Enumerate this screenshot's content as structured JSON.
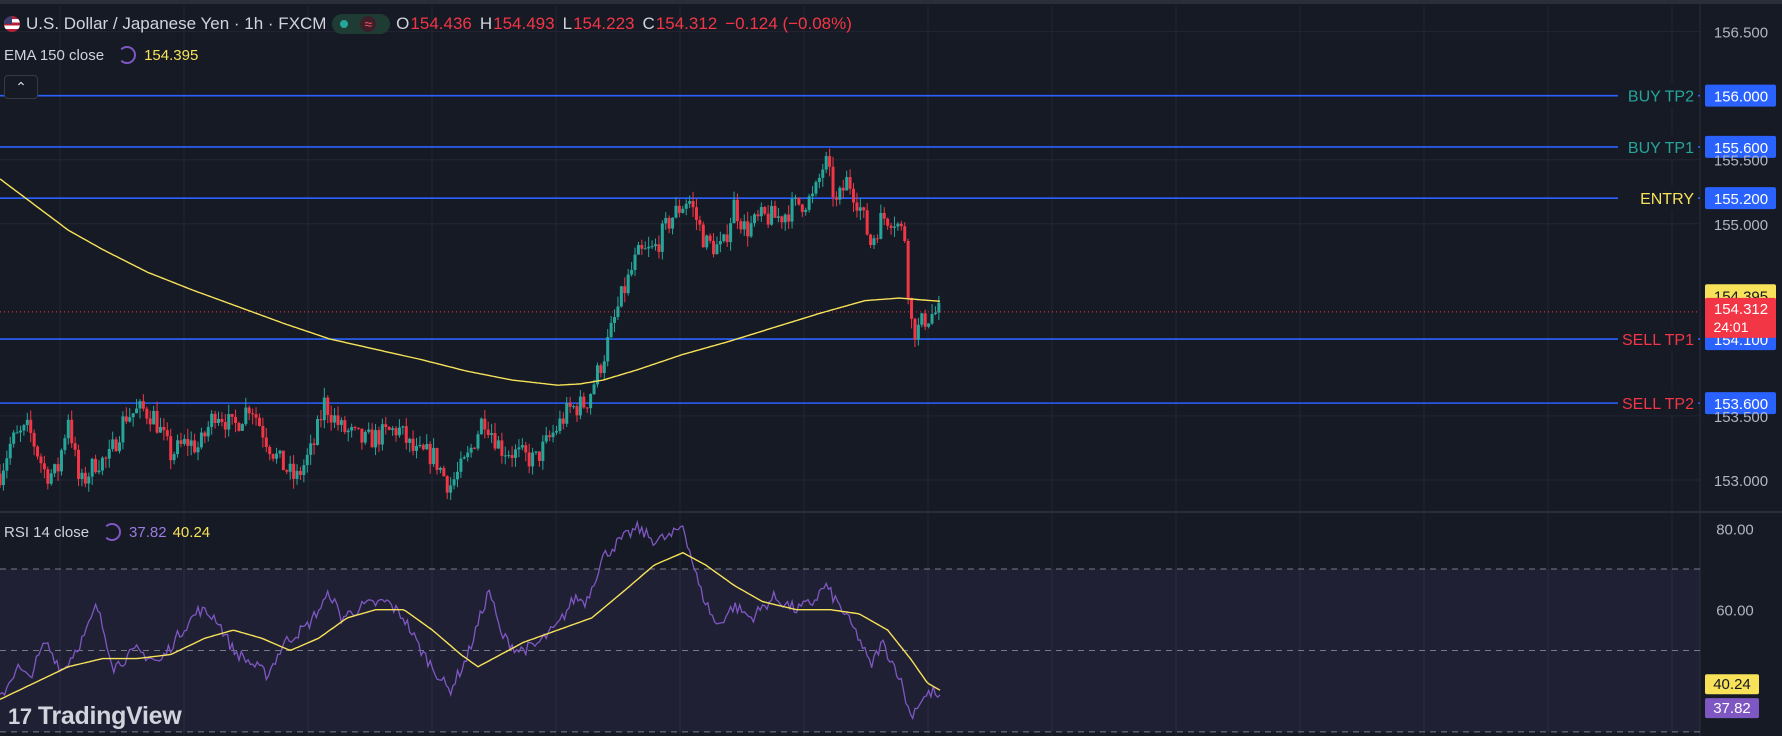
{
  "header": {
    "symbol_title": "U.S. Dollar / Japanese Yen · 1h · FXCM",
    "ohlc": [
      {
        "key": "O",
        "value": "154.436"
      },
      {
        "key": "H",
        "value": "154.493"
      },
      {
        "key": "L",
        "value": "154.223"
      },
      {
        "key": "C",
        "value": "154.312"
      }
    ],
    "change": "−0.124 (−0.08%)",
    "collapse_glyph": "⌃"
  },
  "ema_legend": {
    "label": "EMA 150 close",
    "value": "154.395"
  },
  "rsi_legend": {
    "label": "RSI 14 close",
    "rsi": "37.82",
    "ma": "40.24"
  },
  "brand": {
    "name": "TradingView",
    "logo_glyph": "17"
  },
  "colors": {
    "background": "#161a25",
    "grid": "#232632",
    "up": "#26a69a",
    "down": "#f23645",
    "level_line": "#2962ff",
    "ema": "#f7e259",
    "rsi": "#7e57c2",
    "rsi_ma": "#f7e259",
    "text": "#d1d4dc"
  },
  "icons": [
    "us-flag-icon",
    "market-open-dot-icon",
    "wave-icon",
    "indicator-cycle-icon",
    "collapse-chevron-icon",
    "tradingview-logo-icon"
  ],
  "chart_data": [
    {
      "type": "candlestick",
      "title": "U.S. Dollar / Japanese Yen · 1h · FXCM",
      "ylim": [
        152.75,
        156.7
      ],
      "yticks": [
        "156.500",
        "155.500",
        "155.000",
        "153.500",
        "153.000"
      ],
      "yticks_values": [
        156.5,
        155.5,
        155.0,
        153.5,
        153.0
      ],
      "last_price": {
        "value": 154.312,
        "label": "154.312",
        "countdown": "24:01"
      },
      "ema": {
        "name": "EMA 150 close",
        "last": 154.395,
        "label": "154.395"
      },
      "levels": [
        {
          "name": "BUY TP2",
          "value": 156.0,
          "label": "156.000",
          "color": "#26a69a"
        },
        {
          "name": "BUY TP1",
          "value": 155.6,
          "label": "155.600",
          "color": "#26a69a"
        },
        {
          "name": "ENTRY",
          "value": 155.2,
          "label": "155.200",
          "color": "#f7e259"
        },
        {
          "name": "SELL TP1",
          "value": 154.1,
          "label": "154.100",
          "color": "#f23645"
        },
        {
          "name": "SELL TP2",
          "value": 153.6,
          "label": "153.600",
          "color": "#f23645"
        }
      ],
      "close_anchors": [
        [
          0,
          153.05
        ],
        [
          10,
          153.3
        ],
        [
          25,
          153.4
        ],
        [
          40,
          153.05
        ],
        [
          50,
          153.05
        ],
        [
          60,
          153.5
        ],
        [
          70,
          152.95
        ],
        [
          85,
          153.15
        ],
        [
          95,
          153.15
        ],
        [
          110,
          153.5
        ],
        [
          125,
          153.55
        ],
        [
          135,
          153.5
        ],
        [
          150,
          153.2
        ],
        [
          165,
          153.3
        ],
        [
          175,
          153.25
        ],
        [
          190,
          153.55
        ],
        [
          205,
          153.4
        ],
        [
          220,
          153.6
        ],
        [
          235,
          153.3
        ],
        [
          245,
          153.15
        ],
        [
          260,
          153.0
        ],
        [
          275,
          153.25
        ],
        [
          285,
          153.6
        ],
        [
          300,
          153.4
        ],
        [
          320,
          153.3
        ],
        [
          335,
          153.35
        ],
        [
          350,
          153.4
        ],
        [
          365,
          153.2
        ],
        [
          380,
          153.2
        ],
        [
          395,
          152.95
        ],
        [
          410,
          153.15
        ],
        [
          425,
          153.5
        ],
        [
          440,
          153.25
        ],
        [
          455,
          153.2
        ],
        [
          470,
          153.15
        ],
        [
          485,
          153.35
        ],
        [
          500,
          153.55
        ],
        [
          515,
          153.6
        ],
        [
          530,
          153.95
        ],
        [
          545,
          154.4
        ],
        [
          560,
          154.75
        ],
        [
          575,
          154.8
        ],
        [
          590,
          155.05
        ],
        [
          605,
          155.2
        ],
        [
          620,
          154.85
        ],
        [
          635,
          154.8
        ],
        [
          645,
          155.15
        ],
        [
          655,
          154.95
        ],
        [
          670,
          155.05
        ],
        [
          685,
          155.05
        ],
        [
          700,
          155.15
        ],
        [
          715,
          155.2
        ],
        [
          725,
          155.5
        ],
        [
          735,
          155.15
        ],
        [
          745,
          155.35
        ],
        [
          755,
          155.15
        ],
        [
          765,
          154.85
        ],
        [
          775,
          155.05
        ],
        [
          785,
          155.05
        ],
        [
          795,
          154.9
        ],
        [
          800,
          154.25
        ],
        [
          805,
          154.15
        ],
        [
          812,
          154.25
        ],
        [
          820,
          154.3
        ],
        [
          826,
          154.31
        ]
      ],
      "ema_anchors": [
        [
          0,
          155.35
        ],
        [
          30,
          155.15
        ],
        [
          60,
          154.95
        ],
        [
          90,
          154.8
        ],
        [
          130,
          154.62
        ],
        [
          170,
          154.48
        ],
        [
          210,
          154.35
        ],
        [
          250,
          154.22
        ],
        [
          290,
          154.1
        ],
        [
          330,
          154.02
        ],
        [
          370,
          153.94
        ],
        [
          410,
          153.85
        ],
        [
          450,
          153.78
        ],
        [
          490,
          153.74
        ],
        [
          510,
          153.75
        ],
        [
          530,
          153.78
        ],
        [
          560,
          153.86
        ],
        [
          600,
          153.98
        ],
        [
          640,
          154.08
        ],
        [
          680,
          154.19
        ],
        [
          720,
          154.3
        ],
        [
          760,
          154.4
        ],
        [
          790,
          154.42
        ],
        [
          826,
          154.395
        ]
      ]
    },
    {
      "type": "line",
      "title": "RSI 14 close",
      "ylim": [
        29,
        84
      ],
      "yticks": [
        "80.00",
        "60.00"
      ],
      "yticks_values": [
        80,
        60
      ],
      "bands": [
        70,
        50,
        30
      ],
      "series": [
        {
          "name": "RSI 14 close",
          "last": 37.82,
          "label": "37.82",
          "points": [
            [
              0,
              38
            ],
            [
              15,
              46
            ],
            [
              25,
              43
            ],
            [
              40,
              52
            ],
            [
              55,
              45
            ],
            [
              75,
              54
            ],
            [
              85,
              61
            ],
            [
              100,
              46
            ],
            [
              120,
              50
            ],
            [
              140,
              47
            ],
            [
              160,
              55
            ],
            [
              175,
              60
            ],
            [
              190,
              58
            ],
            [
              205,
              50
            ],
            [
              220,
              47
            ],
            [
              235,
              44
            ],
            [
              250,
              52
            ],
            [
              270,
              56
            ],
            [
              290,
              64
            ],
            [
              300,
              58
            ],
            [
              320,
              61
            ],
            [
              340,
              62
            ],
            [
              355,
              58
            ],
            [
              370,
              50
            ],
            [
              385,
              44
            ],
            [
              395,
              40
            ],
            [
              410,
              48
            ],
            [
              430,
              65
            ],
            [
              440,
              54
            ],
            [
              455,
              50
            ],
            [
              470,
              51
            ],
            [
              490,
              56
            ],
            [
              505,
              63
            ],
            [
              515,
              62
            ],
            [
              530,
              73
            ],
            [
              545,
              77
            ],
            [
              560,
              80
            ],
            [
              575,
              77
            ],
            [
              590,
              78
            ],
            [
              600,
              81
            ],
            [
              615,
              65
            ],
            [
              630,
              56
            ],
            [
              645,
              61
            ],
            [
              660,
              58
            ],
            [
              680,
              63
            ],
            [
              700,
              60
            ],
            [
              715,
              62
            ],
            [
              725,
              66
            ],
            [
              740,
              60
            ],
            [
              755,
              53
            ],
            [
              765,
              46
            ],
            [
              775,
              52
            ],
            [
              790,
              44
            ],
            [
              800,
              34
            ],
            [
              810,
              38
            ],
            [
              820,
              40
            ],
            [
              826,
              37.82
            ]
          ]
        },
        {
          "name": "RSI MA",
          "last": 40.24,
          "label": "40.24",
          "points": [
            [
              0,
              38
            ],
            [
              30,
              42
            ],
            [
              60,
              46
            ],
            [
              90,
              48
            ],
            [
              120,
              48
            ],
            [
              150,
              49
            ],
            [
              180,
              53
            ],
            [
              205,
              55
            ],
            [
              230,
              53
            ],
            [
              255,
              50
            ],
            [
              280,
              53
            ],
            [
              305,
              58
            ],
            [
              330,
              60
            ],
            [
              355,
              60
            ],
            [
              380,
              55
            ],
            [
              405,
              49
            ],
            [
              420,
              46
            ],
            [
              440,
              49
            ],
            [
              460,
              52
            ],
            [
              490,
              55
            ],
            [
              520,
              58
            ],
            [
              550,
              65
            ],
            [
              575,
              71
            ],
            [
              600,
              74
            ],
            [
              620,
              71
            ],
            [
              645,
              66
            ],
            [
              670,
              62
            ],
            [
              700,
              60
            ],
            [
              730,
              60
            ],
            [
              755,
              59
            ],
            [
              780,
              55
            ],
            [
              800,
              48
            ],
            [
              815,
              42
            ],
            [
              826,
              40.24
            ]
          ]
        }
      ]
    }
  ]
}
